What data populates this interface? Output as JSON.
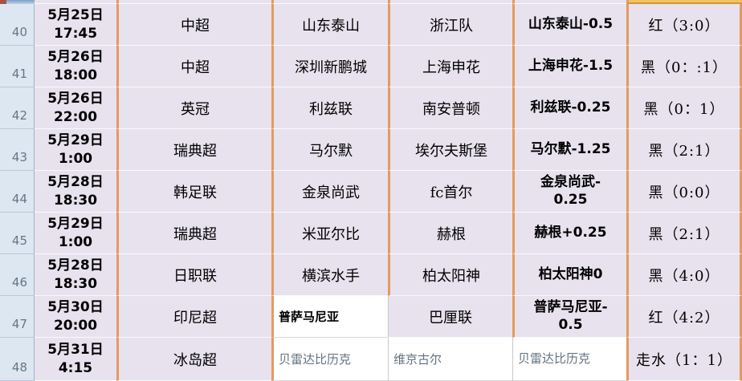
{
  "colors": {
    "cell_background": "#e7e2ee",
    "gridline_orange": "#e59a5e",
    "gutter_background": "#dce7f2",
    "gutter_text": "#667686",
    "amber_remnant": "#ecc465",
    "white_cell": "#ffffff",
    "muted_text": "#63727f",
    "red_result_label": "红",
    "black_result_label": "黑"
  },
  "rows": [
    {
      "num": "40",
      "date_time": "5月25日\n17:45",
      "league": "中超",
      "home": {
        "text": "山东泰山"
      },
      "away": {
        "text": "浙江队"
      },
      "handicap": {
        "text": "山东泰山-0.5"
      },
      "result": "红（3:0）"
    },
    {
      "num": "41",
      "date_time": "5月26日\n18:00",
      "league": "中超",
      "home": {
        "text": "深圳新鹏城"
      },
      "away": {
        "text": "上海申花"
      },
      "handicap": {
        "text": "上海申花-1.5"
      },
      "result": "黑（0：:1）"
    },
    {
      "num": "42",
      "date_time": "5月26日\n22:00",
      "league": "英冠",
      "home": {
        "text": "利兹联"
      },
      "away": {
        "text": "南安普顿"
      },
      "handicap": {
        "text": "利兹联-0.25"
      },
      "result": "黑（0：1）"
    },
    {
      "num": "43",
      "date_time": "5月29日\n1:00",
      "league": "瑞典超",
      "home": {
        "text": "马尔默"
      },
      "away": {
        "text": "埃尔夫斯堡"
      },
      "handicap": {
        "text": "马尔默-1.25"
      },
      "result": "黑（2:1）"
    },
    {
      "num": "44",
      "date_time": "5月28日\n18:30",
      "league": "韩足联",
      "home": {
        "text": "金泉尚武"
      },
      "away": {
        "text": "fc首尔"
      },
      "handicap": {
        "text": "金泉尚武-\n0.25"
      },
      "result": "黑（0:0）"
    },
    {
      "num": "45",
      "date_time": "5月29日\n1:00",
      "league": "瑞典超",
      "home": {
        "text": "米亚尔比"
      },
      "away": {
        "text": "赫根"
      },
      "handicap": {
        "text": "赫根+0.25"
      },
      "result": "黑（2:1）"
    },
    {
      "num": "46",
      "date_time": "5月28日\n18:30",
      "league": "日职联",
      "home": {
        "text": "横滨水手"
      },
      "away": {
        "text": "柏太阳神"
      },
      "handicap": {
        "text": "柏太阳神0"
      },
      "result": "黑（4:0）"
    },
    {
      "num": "47",
      "date_time": "5月30日\n20:00",
      "league": "印尼超",
      "home": {
        "text": "普萨马尼亚",
        "variant": "white-bold"
      },
      "away": {
        "text": "巴厘联",
        "border": "gray"
      },
      "handicap": {
        "text": "普萨马尼亚-\n0.5"
      },
      "result": "红（4:2）"
    },
    {
      "num": "48",
      "date_time": "5月31日\n4:15",
      "league": "冰岛超",
      "home": {
        "text": "贝雷达比历克",
        "variant": "white-muted"
      },
      "away": {
        "text": "维京古尔",
        "variant": "white-muted",
        "border": "gray"
      },
      "handicap": {
        "text": "贝雷达比历克",
        "variant": "white-muted",
        "border": "gray"
      },
      "result": "走水（1：1）"
    }
  ]
}
